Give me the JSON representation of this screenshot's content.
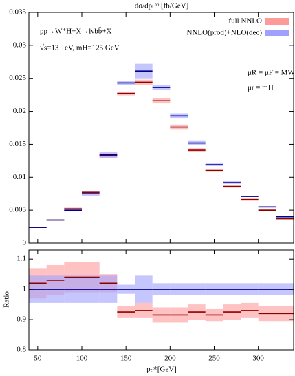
{
  "chart_data": [
    {
      "type": "histogram",
      "title": "dσ/dpₜᵇᵇ [fb/GeV]",
      "bins": [
        40,
        60,
        80,
        100,
        120,
        140,
        160,
        180,
        200,
        220,
        240,
        260,
        280,
        300,
        320,
        340
      ],
      "series": [
        {
          "name": "full NNLO",
          "color": "#8b0000",
          "band_color": "#ff9a9a",
          "values": [
            0.0024,
            0.0035,
            0.0052,
            0.0077,
            0.0133,
            0.0227,
            0.0244,
            0.0216,
            0.0176,
            0.0141,
            0.011,
            0.0086,
            0.0066,
            0.005,
            0.0037
          ],
          "errors": [
            0.0001,
            0.0001,
            0.0002,
            0.0002,
            0.0003,
            0.0003,
            0.0004,
            0.0004,
            0.0004,
            0.0003,
            0.0002,
            0.0002,
            0.0002,
            0.0002,
            0.0001
          ]
        },
        {
          "name": "NNLO(prod)+NLO(dec)",
          "color": "#00008b",
          "band_color": "#a0a0ff",
          "values": [
            0.0024,
            0.0035,
            0.005,
            0.0075,
            0.0134,
            0.0243,
            0.0261,
            0.0236,
            0.0193,
            0.0152,
            0.0119,
            0.0092,
            0.0071,
            0.0055,
            0.004
          ],
          "errors": [
            0.0001,
            0.0001,
            0.0002,
            0.0003,
            0.0005,
            0.0003,
            0.0011,
            0.0004,
            0.0004,
            0.0003,
            0.0002,
            0.0002,
            0.0001,
            0.0001,
            0.0001
          ]
        }
      ],
      "xlim": [
        40,
        340
      ],
      "xticks": [
        50,
        100,
        150,
        200,
        250,
        300
      ],
      "ylim": [
        0,
        0.035
      ],
      "yticks": [
        0,
        0.005,
        0.01,
        0.015,
        0.02,
        0.025,
        0.03,
        0.035
      ],
      "legend": "upper right",
      "annotations": [
        "pp→W⁺H+X→lνbb̄+X",
        "√s=13 TeV, mH=125 GeV",
        "μR = μF = MWH",
        "μr = mH"
      ]
    },
    {
      "type": "histogram",
      "y_label": "Ratio",
      "x_label": "pₜᵇᵇ[GeV]",
      "bins": [
        40,
        60,
        80,
        100,
        120,
        140,
        160,
        180,
        200,
        220,
        240,
        260,
        280,
        300,
        320,
        340
      ],
      "series": [
        {
          "name": "full NNLO",
          "color": "#8b0000",
          "band_color": "#ff9a9a",
          "values": [
            1.02,
            1.03,
            1.04,
            1.04,
            1.02,
            0.925,
            0.93,
            0.915,
            0.915,
            0.925,
            0.915,
            0.925,
            0.93,
            0.92,
            0.92
          ],
          "errors": [
            0.05,
            0.05,
            0.05,
            0.05,
            0.03,
            0.02,
            0.025,
            0.025,
            0.025,
            0.025,
            0.02,
            0.025,
            0.025,
            0.025,
            0.025
          ]
        },
        {
          "name": "NNLO(prod)+NLO(dec)",
          "color": "#00008b",
          "band_color": "#a0a0ff",
          "values": [
            1,
            1,
            1,
            1,
            1,
            1,
            1,
            1,
            1,
            1,
            1,
            1,
            1,
            1,
            1
          ],
          "errors": [
            0.045,
            0.045,
            0.045,
            0.045,
            0.045,
            0.015,
            0.045,
            0.02,
            0.02,
            0.02,
            0.02,
            0.02,
            0.02,
            0.02,
            0.02
          ]
        }
      ],
      "xlim": [
        40,
        340
      ],
      "xticks": [
        50,
        100,
        150,
        200,
        250,
        300
      ],
      "ylim": [
        0.8,
        1.13
      ],
      "yticks": [
        0.8,
        0.9,
        1,
        1.1
      ]
    }
  ]
}
